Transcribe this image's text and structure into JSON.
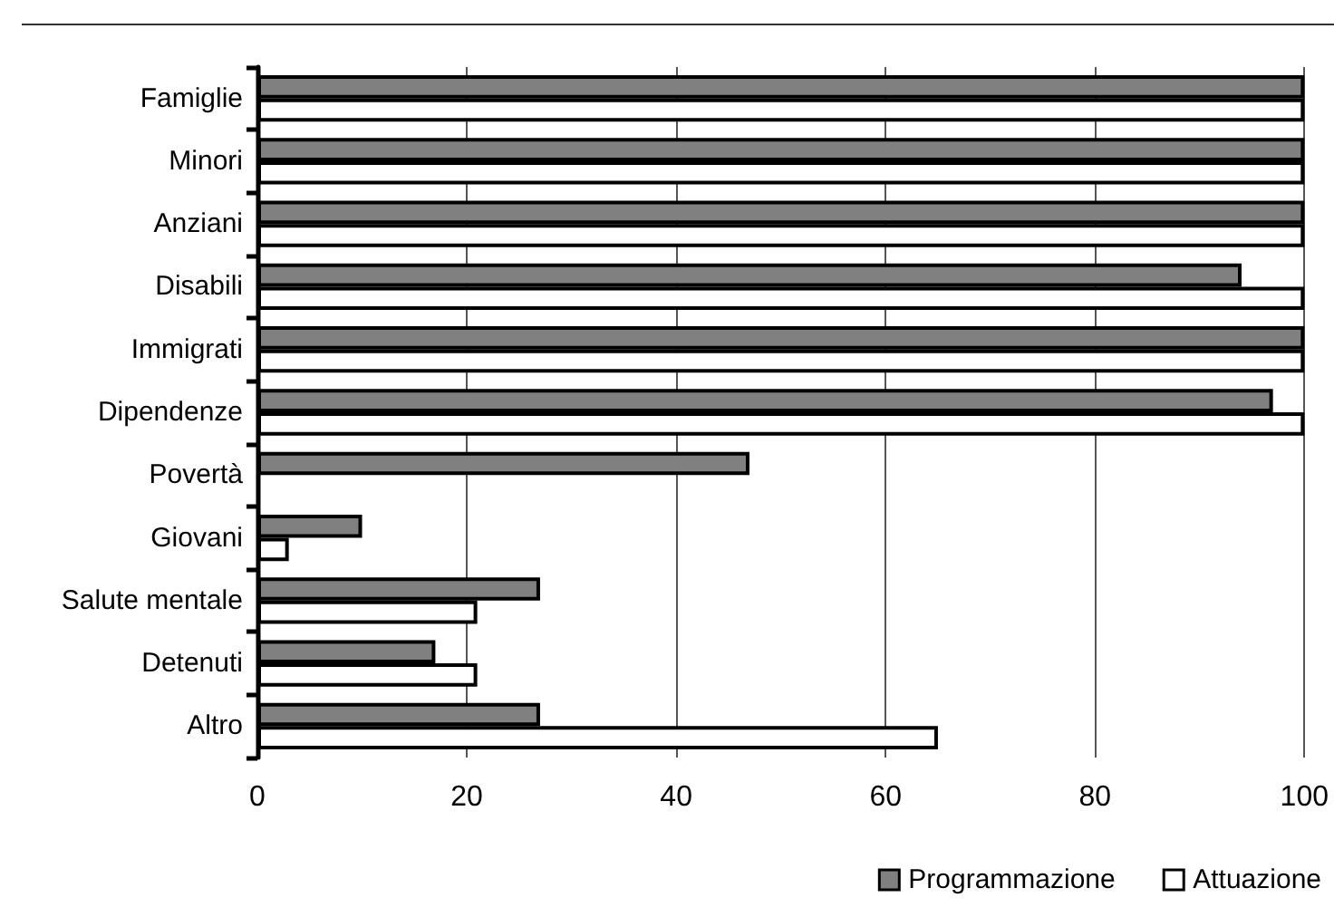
{
  "chart_data": {
    "type": "bar",
    "orientation": "horizontal",
    "categories": [
      "Famiglie",
      "Minori",
      "Anziani",
      "Disabili",
      "Immigrati",
      "Dipendenze",
      "Povertà",
      "Giovani",
      "Salute mentale",
      "Detenuti",
      "Altro"
    ],
    "series": [
      {
        "name": "Programmazione",
        "color": "#808080",
        "values": [
          100,
          100,
          100,
          94,
          100,
          97,
          47,
          10,
          27,
          17,
          27
        ]
      },
      {
        "name": "Attuazione",
        "color": "#ffffff",
        "values": [
          100,
          100,
          100,
          100,
          100,
          100,
          null,
          3,
          21,
          21,
          65
        ]
      }
    ],
    "xlim": [
      0,
      100
    ],
    "xticks": [
      0,
      20,
      40,
      60,
      80,
      100
    ],
    "grid": "x",
    "legend": "bottom right"
  }
}
